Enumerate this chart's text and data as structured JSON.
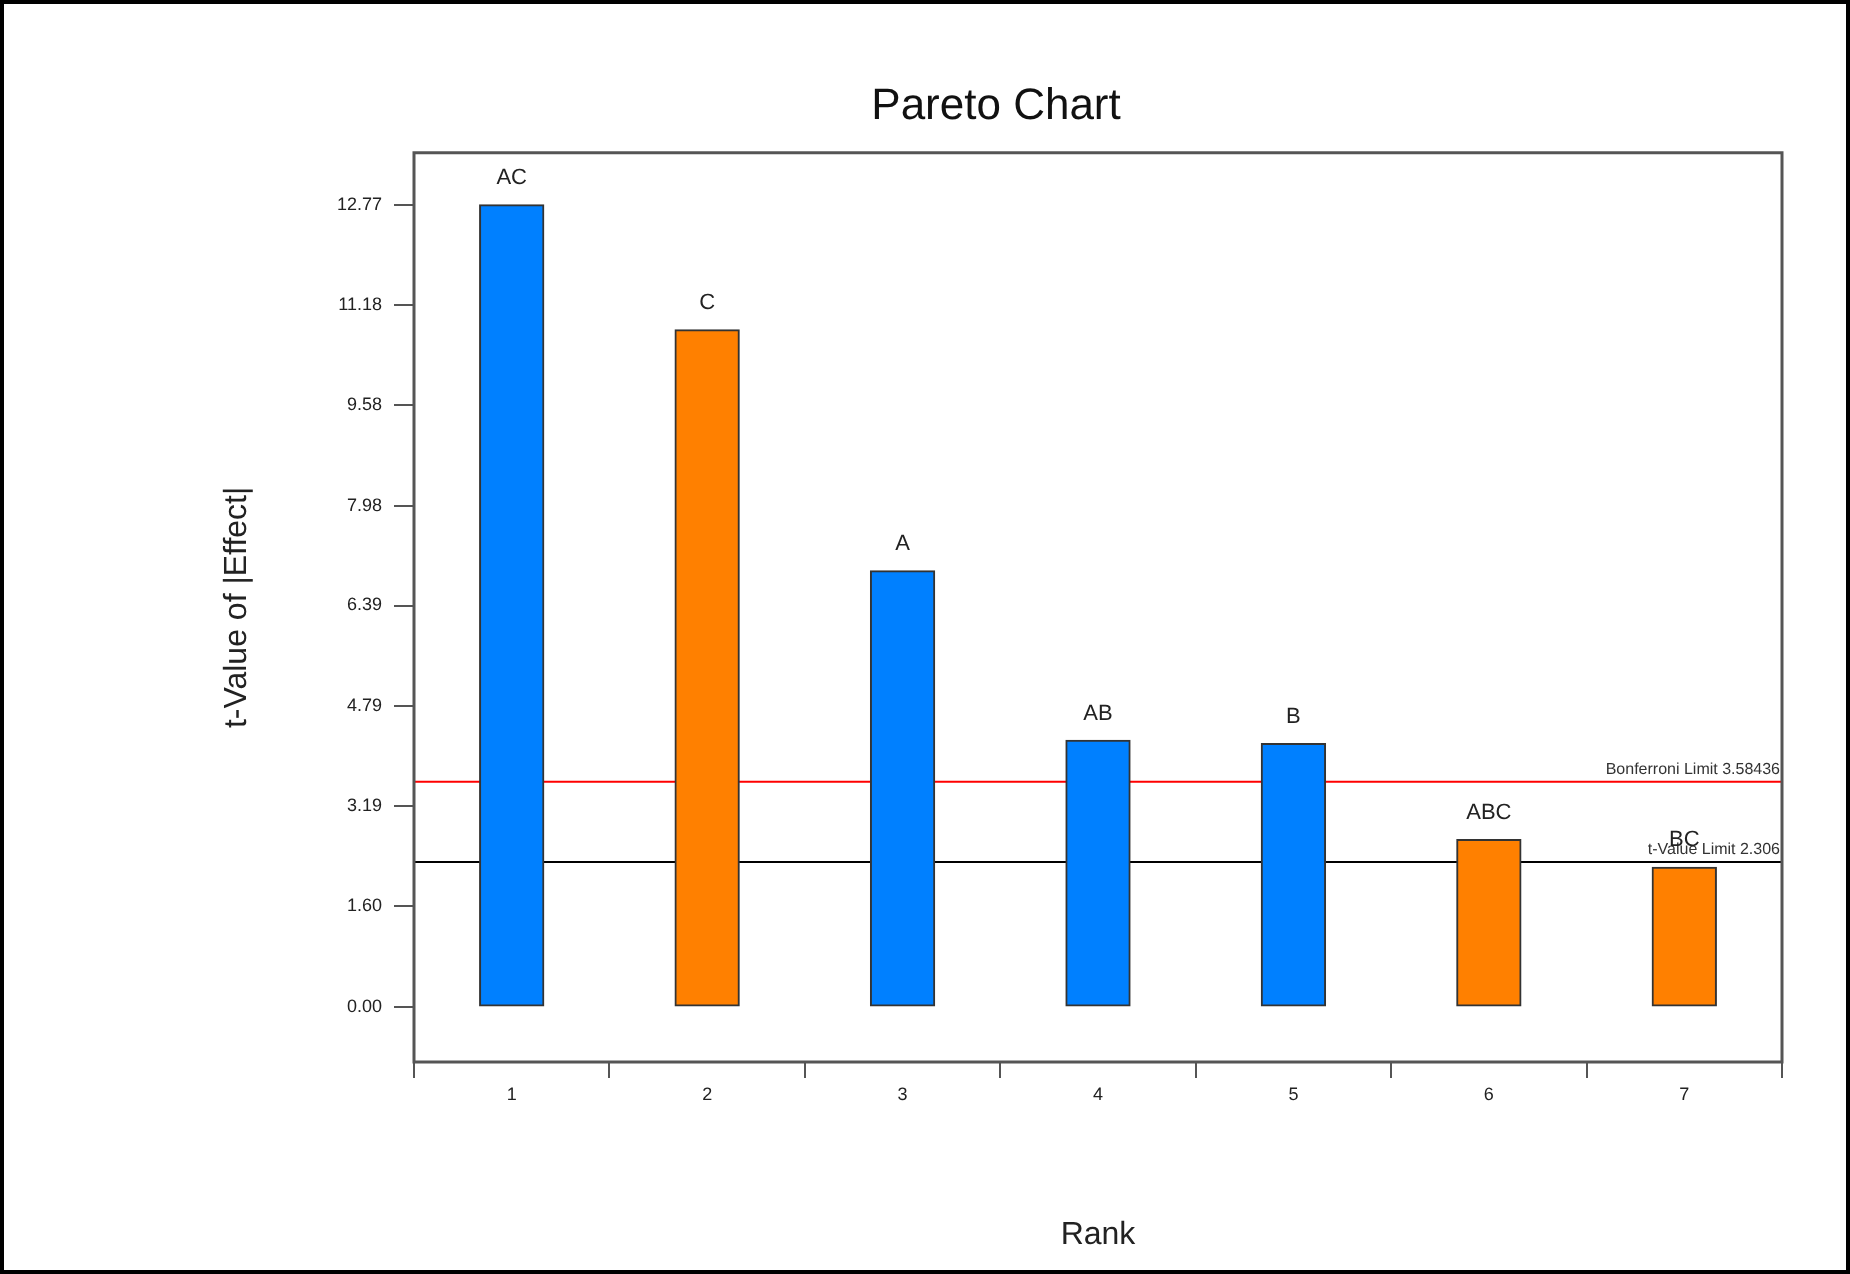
{
  "chart_data": {
    "type": "bar",
    "title": "Pareto Chart",
    "xlabel": "Rank",
    "ylabel": "t-Value of |Effect|",
    "categories": [
      "1",
      "2",
      "3",
      "4",
      "5",
      "6",
      "7"
    ],
    "values": [
      12.77,
      10.78,
      6.94,
      4.24,
      4.19,
      2.66,
      2.22
    ],
    "colors": [
      "#0080ff",
      "#ff8000",
      "#0080ff",
      "#0080ff",
      "#0080ff",
      "#ff8000",
      "#ff8000"
    ],
    "ylim": [
      -0.88,
      13.6
    ],
    "yticks": [
      {
        "value": 0,
        "label": "0.00"
      },
      {
        "value": 1.6,
        "label": "1.60"
      },
      3.19,
      4.79,
      6.39,
      7.98,
      9.58,
      11.18,
      12.77
    ],
    "ref_lines": [
      {
        "axis": "y",
        "value": 3.58436,
        "label": "Bonferroni Limit 3.58436",
        "color": "#ff0000"
      },
      {
        "axis": "y",
        "value": 2.306,
        "label": "t-Value Limit 2.306",
        "color": "#000000"
      }
    ],
    "annotations": [
      {
        "text": "AC",
        "x": "1",
        "y": 12.77
      },
      {
        "text": "C",
        "x": "2",
        "y": 10.78
      },
      {
        "text": "A",
        "x": "3",
        "y": 6.94
      },
      {
        "text": "AB",
        "x": "4",
        "y": 4.24
      },
      {
        "text": "B",
        "x": "5",
        "y": 4.19
      },
      {
        "text": "ABC",
        "x": "6",
        "y": 2.66
      },
      {
        "text": "BC",
        "x": "7",
        "y": 2.22
      }
    ]
  }
}
